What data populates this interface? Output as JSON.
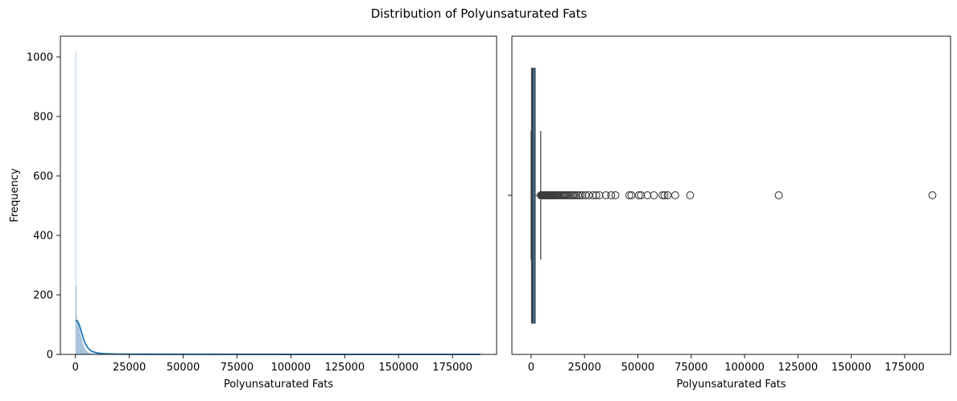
{
  "figure": {
    "suptitle": "Distribution of Polyunsaturated Fats",
    "colors": {
      "histogram": "#8fb0cf",
      "kde": "#1f77b4",
      "box_fill": "#3a75a8",
      "outlier_edge": "#3d3d3d"
    }
  },
  "chart_data": [
    {
      "type": "bar",
      "subtype": "histogram_with_kde",
      "title": "",
      "xlabel": "Polyunsaturated Fats",
      "ylabel": "Frequency",
      "xlim": [
        -7000,
        195500
      ],
      "ylim": [
        0,
        1070
      ],
      "xticks": [
        0,
        25000,
        50000,
        75000,
        100000,
        125000,
        150000,
        175000
      ],
      "xtick_labels": [
        "0",
        "25000",
        "50000",
        "75000",
        "100000",
        "125000",
        "150000",
        "175000"
      ],
      "yticks": [
        0,
        200,
        400,
        600,
        800,
        1000
      ],
      "ytick_labels": [
        "0",
        "200",
        "400",
        "600",
        "800",
        "1000"
      ],
      "grid": false,
      "bins": [
        {
          "x": 0,
          "count": 1018
        },
        {
          "x": 270,
          "count": 230
        },
        {
          "x": 540,
          "count": 128
        },
        {
          "x": 810,
          "count": 112
        },
        {
          "x": 1080,
          "count": 104
        },
        {
          "x": 1350,
          "count": 96
        },
        {
          "x": 1620,
          "count": 90
        },
        {
          "x": 1890,
          "count": 82
        },
        {
          "x": 2160,
          "count": 70
        },
        {
          "x": 2430,
          "count": 62
        },
        {
          "x": 2700,
          "count": 54
        },
        {
          "x": 2970,
          "count": 46
        },
        {
          "x": 3240,
          "count": 40
        },
        {
          "x": 3510,
          "count": 34
        },
        {
          "x": 3780,
          "count": 28
        },
        {
          "x": 4050,
          "count": 24
        },
        {
          "x": 4320,
          "count": 20
        },
        {
          "x": 4590,
          "count": 17
        },
        {
          "x": 4860,
          "count": 14
        },
        {
          "x": 5130,
          "count": 12
        },
        {
          "x": 5400,
          "count": 10
        },
        {
          "x": 5670,
          "count": 8
        },
        {
          "x": 5940,
          "count": 7
        },
        {
          "x": 6210,
          "count": 6
        },
        {
          "x": 6480,
          "count": 5
        },
        {
          "x": 6750,
          "count": 5
        },
        {
          "x": 7020,
          "count": 4
        },
        {
          "x": 7290,
          "count": 4
        },
        {
          "x": 7560,
          "count": 3
        },
        {
          "x": 7830,
          "count": 3
        },
        {
          "x": 8100,
          "count": 3
        },
        {
          "x": 8370,
          "count": 2
        },
        {
          "x": 8640,
          "count": 2
        },
        {
          "x": 8910,
          "count": 2
        }
      ],
      "bin_width": 270,
      "kde": {
        "x": [
          0,
          500,
          1000,
          1500,
          2000,
          2500,
          3000,
          3500,
          4000,
          5000,
          6000,
          7000,
          8000,
          10000,
          12000,
          15000,
          20000,
          30000,
          50000,
          100000,
          150000,
          188000
        ],
        "y": [
          113,
          113,
          112,
          104,
          94,
          82,
          70,
          58,
          46,
          30,
          20,
          13,
          9,
          5,
          3,
          2,
          1,
          0.5,
          0.3,
          0.1,
          0.05,
          0.05
        ]
      }
    },
    {
      "type": "boxplot",
      "title": "",
      "xlabel": "Polyunsaturated Fats",
      "ylabel": "",
      "xlim": [
        -9000,
        196500
      ],
      "xticks": [
        0,
        25000,
        50000,
        75000,
        100000,
        125000,
        150000,
        175000
      ],
      "xtick_labels": [
        "0",
        "25000",
        "50000",
        "75000",
        "100000",
        "125000",
        "150000",
        "175000"
      ],
      "grid": false,
      "box": {
        "q1": 200,
        "median": 700,
        "q3": 1900,
        "whisker_low": 0,
        "whisker_high": 4500
      },
      "outliers": [
        4600,
        4800,
        5000,
        5200,
        5400,
        5600,
        5800,
        6000,
        6300,
        6600,
        6900,
        7200,
        7500,
        7800,
        8100,
        8400,
        8700,
        9000,
        9400,
        9800,
        10200,
        10600,
        11000,
        11500,
        12000,
        12500,
        13000,
        13600,
        14200,
        14800,
        15400,
        16000,
        16700,
        17400,
        18100,
        18800,
        19500,
        20300,
        21100,
        22000,
        23000,
        24000,
        25500,
        27000,
        29000,
        30500,
        32000,
        35000,
        37500,
        39500,
        46000,
        47000,
        50500,
        51500,
        54500,
        57500,
        61500,
        62500,
        64000,
        67500,
        74500,
        116000,
        188000
      ]
    }
  ]
}
